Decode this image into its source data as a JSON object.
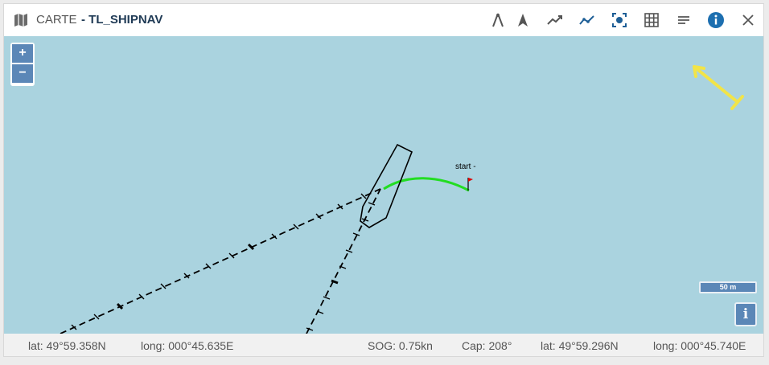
{
  "header": {
    "title_prefix": "CARTE",
    "title": "- TL_SHIPNAV",
    "tools": [
      {
        "name": "compass-icon"
      },
      {
        "name": "navigation-arrow-icon"
      },
      {
        "name": "trend-line-icon"
      },
      {
        "name": "track-line-icon"
      },
      {
        "name": "focus-target-icon"
      },
      {
        "name": "grid-icon"
      },
      {
        "name": "menu-lines-icon"
      },
      {
        "name": "info-icon"
      },
      {
        "name": "close-icon"
      }
    ]
  },
  "map": {
    "zoom_in": "+",
    "zoom_out": "−",
    "start_label": "start -",
    "scale_label": "50 m",
    "info_label": "i",
    "colors": {
      "water": "#aad3df",
      "track": "#22dd22",
      "flag": "#dd0000",
      "annotation_arrow": "#f2e448"
    }
  },
  "footer": {
    "lat1": "lat: 49°59.358N",
    "long1": "long: 000°45.635E",
    "sog": "SOG: 0.75kn",
    "cap": "Cap: 208°",
    "lat2": "lat: 49°59.296N",
    "long2": "long: 000°45.740E"
  }
}
